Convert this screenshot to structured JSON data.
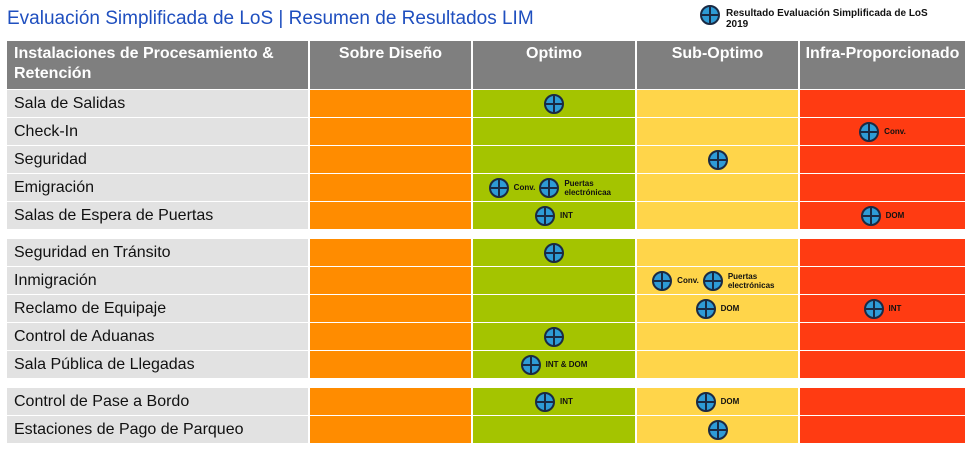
{
  "title": "Evaluación Simplificada de LoS | Resumen de Resultados LIM",
  "legend": {
    "icon": "crosshair-circle-icon",
    "label": "Resultado Evaluación Simplificada de LoS 2019"
  },
  "colors": {
    "sobre_diseno": "#ff8c00",
    "optimo": "#a4c400",
    "sub_optimo": "#ffd54a",
    "infra": "#ff3b12",
    "header": "#7f7f7f",
    "label_bg": "#e2e2e2",
    "accent": "#2e9bd6"
  },
  "headers": [
    "Instalaciones de Procesamiento & Retención",
    "Sobre Diseño",
    "Optimo",
    "Sub-Optimo",
    "Infra-Proporcionado"
  ],
  "groups": [
    [
      {
        "name": "Sala de Salidas",
        "marks": [
          {
            "col": 2,
            "label": ""
          }
        ]
      },
      {
        "name": "Check-In",
        "marks": [
          {
            "col": 4,
            "label": "Conv."
          }
        ]
      },
      {
        "name": "Seguridad",
        "marks": [
          {
            "col": 3,
            "label": ""
          }
        ]
      },
      {
        "name": "Emigración",
        "marks": [
          {
            "col": 2,
            "label": "Conv."
          },
          {
            "col": 2,
            "label": "Puertas electrónicaa"
          }
        ]
      },
      {
        "name": "Salas de Espera de Puertas",
        "marks": [
          {
            "col": 2,
            "label": "INT"
          },
          {
            "col": 4,
            "label": "DOM"
          }
        ]
      }
    ],
    [
      {
        "name": "Seguridad en Tránsito",
        "marks": [
          {
            "col": 2,
            "label": ""
          }
        ]
      },
      {
        "name": "Inmigración",
        "marks": [
          {
            "col": 3,
            "label": "Conv."
          },
          {
            "col": 3,
            "label": "Puertas electrónicas"
          }
        ]
      },
      {
        "name": "Reclamo de Equipaje",
        "marks": [
          {
            "col": 3,
            "label": "DOM"
          },
          {
            "col": 4,
            "label": "INT"
          }
        ]
      },
      {
        "name": "Control de Aduanas",
        "marks": [
          {
            "col": 2,
            "label": ""
          }
        ]
      },
      {
        "name": "Sala Pública de Llegadas",
        "marks": [
          {
            "col": 2,
            "label": "INT & DOM"
          }
        ]
      }
    ],
    [
      {
        "name": "Control de Pase a Bordo",
        "marks": [
          {
            "col": 2,
            "label": "INT"
          },
          {
            "col": 3,
            "label": "DOM"
          }
        ]
      },
      {
        "name": "Estaciones de Pago de Parqueo",
        "marks": [
          {
            "col": 3,
            "label": ""
          }
        ]
      }
    ]
  ]
}
